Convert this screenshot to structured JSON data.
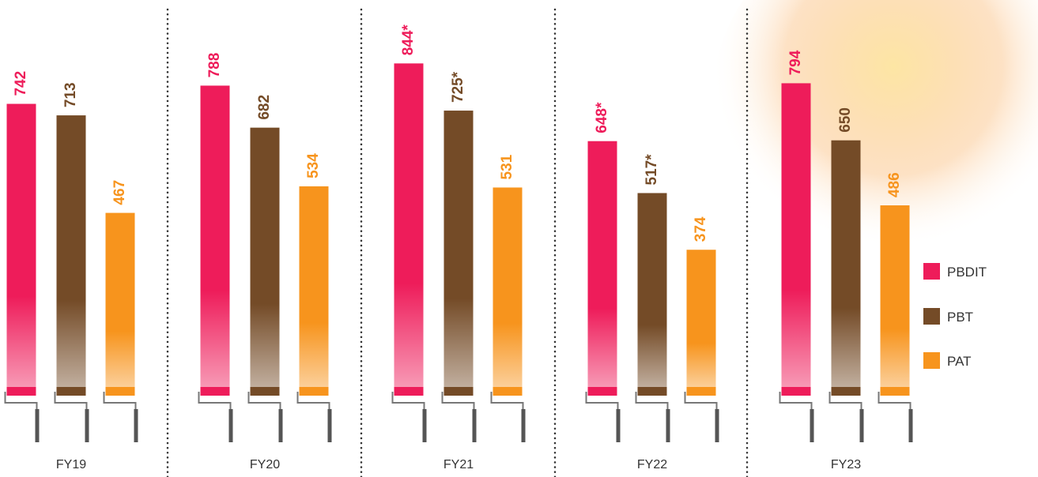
{
  "chart_data": {
    "type": "bar",
    "categories": [
      "FY19",
      "FY20",
      "FY21",
      "FY22",
      "FY23"
    ],
    "series": [
      {
        "name": "PBDIT",
        "color": "#ee1c5a",
        "values": [
          742,
          788,
          844,
          648,
          794
        ],
        "value_labels": [
          "742",
          "788",
          "844*",
          "648*",
          "794"
        ]
      },
      {
        "name": "PBT",
        "color": "#744b27",
        "values": [
          713,
          682,
          725,
          517,
          650
        ],
        "value_labels": [
          "713",
          "682",
          "725*",
          "517*",
          "650"
        ]
      },
      {
        "name": "PAT",
        "color": "#f7941d",
        "values": [
          467,
          534,
          531,
          374,
          486
        ]
      }
    ]
  }
}
